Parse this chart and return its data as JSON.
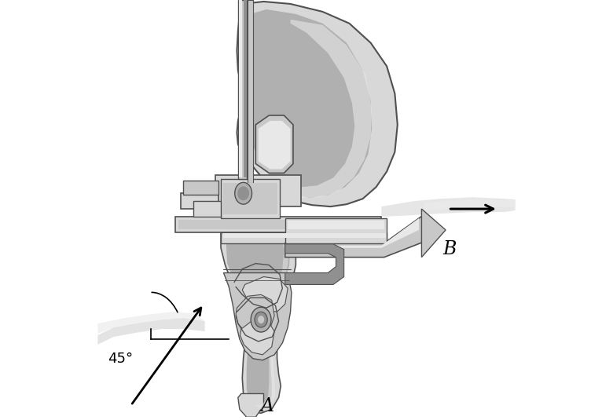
{
  "background_color": "#ffffff",
  "label_A": "A",
  "label_B": "B",
  "angle_label": "45°",
  "figsize": [
    7.8,
    5.35
  ],
  "dpi": 100,
  "silver": "#c8c8c8",
  "light_silver": "#d8d8d8",
  "dark_silver": "#909090",
  "very_light": "#e8e8e8",
  "med_gray": "#b0b0b0",
  "dark_gray": "#505050",
  "near_white": "#efefef"
}
